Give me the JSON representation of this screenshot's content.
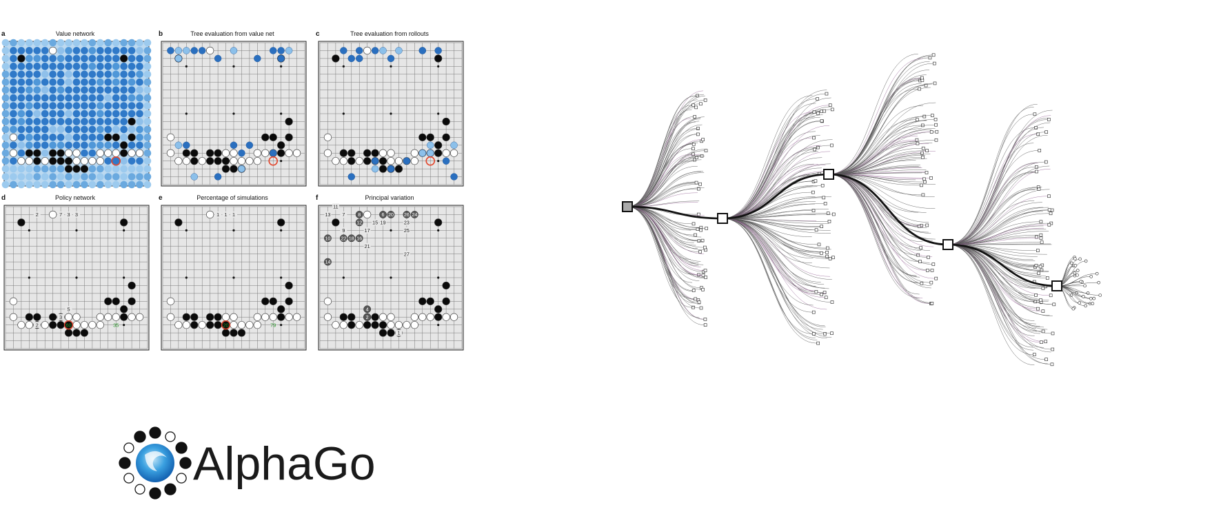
{
  "panels": [
    {
      "id": "a",
      "letter": "a",
      "title": "Value network",
      "type": "heat"
    },
    {
      "id": "b",
      "letter": "b",
      "title": "Tree evaluation from value net",
      "type": "eval"
    },
    {
      "id": "c",
      "letter": "c",
      "title": "Tree evaluation from rollouts",
      "type": "eval"
    },
    {
      "id": "d",
      "letter": "d",
      "title": "Policy network",
      "type": "numbers",
      "labels": [
        {
          "c": 4,
          "r": 1,
          "t": "2"
        },
        {
          "c": 7,
          "r": 1,
          "t": "7"
        },
        {
          "c": 8,
          "r": 1,
          "t": "3"
        },
        {
          "c": 9,
          "r": 1,
          "t": "3"
        },
        {
          "c": 8,
          "r": 13,
          "t": "5"
        },
        {
          "c": 4,
          "r": 15,
          "t": "2"
        },
        {
          "c": 7,
          "r": 14,
          "t": "3"
        }
      ],
      "green": [
        {
          "c": 5,
          "r": 14,
          "t": "60"
        },
        {
          "c": 9,
          "r": 14,
          "t": "35"
        }
      ]
    },
    {
      "id": "e",
      "letter": "e",
      "title": "Percentage of simulations",
      "type": "numbers",
      "labels": [
        {
          "c": 7,
          "r": 1,
          "t": "1"
        },
        {
          "c": 8,
          "r": 1,
          "t": "1"
        },
        {
          "c": 9,
          "r": 1,
          "t": "1"
        }
      ],
      "green": [
        {
          "c": 5,
          "r": 14,
          "t": "20"
        },
        {
          "c": 9,
          "r": 14,
          "t": "79"
        }
      ]
    },
    {
      "id": "f",
      "letter": "f",
      "title": "Principal variation",
      "type": "pv",
      "labels": [
        {
          "c": 2,
          "r": 0,
          "t": "11"
        },
        {
          "c": 1,
          "r": 1,
          "t": "13"
        },
        {
          "c": 3,
          "r": 1,
          "t": "7"
        },
        {
          "c": 7,
          "r": 2,
          "t": "15"
        },
        {
          "c": 8,
          "r": 2,
          "t": "19"
        },
        {
          "c": 3,
          "r": 3,
          "t": "9"
        },
        {
          "c": 6,
          "r": 3,
          "t": "17"
        },
        {
          "c": 6,
          "r": 5,
          "t": "21"
        },
        {
          "c": 11,
          "r": 2,
          "t": "23"
        },
        {
          "c": 11,
          "r": 3,
          "t": "25"
        },
        {
          "c": 11,
          "r": 6,
          "t": "27"
        },
        {
          "c": 6,
          "r": 13,
          "t": "5"
        },
        {
          "c": 10,
          "r": 16,
          "t": "1"
        }
      ],
      "grey": [
        {
          "c": 5,
          "r": 1,
          "t": "8"
        },
        {
          "c": 5,
          "r": 2,
          "t": "12"
        },
        {
          "c": 5,
          "r": 4,
          "t": "16"
        },
        {
          "c": 1,
          "r": 4,
          "t": "10"
        },
        {
          "c": 3,
          "r": 4,
          "t": "22"
        },
        {
          "c": 4,
          "r": 4,
          "t": "18"
        },
        {
          "c": 8,
          "r": 1,
          "t": "6"
        },
        {
          "c": 9,
          "r": 1,
          "t": "20"
        },
        {
          "c": 11,
          "r": 1,
          "t": "26"
        },
        {
          "c": 12,
          "r": 1,
          "t": "24"
        },
        {
          "c": 1,
          "r": 7,
          "t": "14"
        },
        {
          "c": 6,
          "r": 13,
          "t": "4"
        },
        {
          "c": 6,
          "r": 14,
          "t": "2"
        }
      ]
    }
  ],
  "logo": {
    "text": "AlphaGo"
  }
}
